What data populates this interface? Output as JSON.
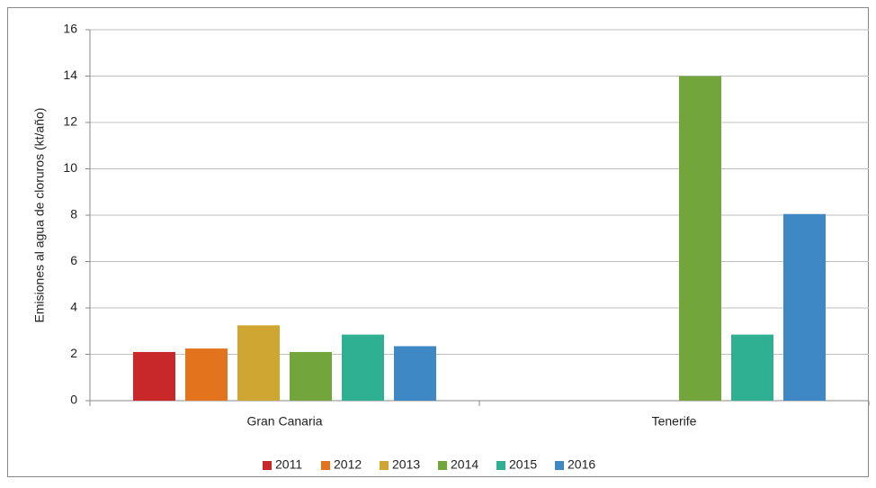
{
  "chart_data": {
    "type": "bar",
    "y_label": "Emisiones al agua de cloruros (kt/año)",
    "categories": [
      "Gran Canaria",
      "Tenerife"
    ],
    "series": [
      {
        "name": "2011",
        "color": "#c9282a",
        "values": [
          2.1,
          null
        ]
      },
      {
        "name": "2012",
        "color": "#e3731c",
        "values": [
          2.25,
          null
        ]
      },
      {
        "name": "2013",
        "color": "#cfa632",
        "values": [
          3.25,
          null
        ]
      },
      {
        "name": "2014",
        "color": "#72a53c",
        "values": [
          2.1,
          14
        ]
      },
      {
        "name": "2015",
        "color": "#2fb092",
        "values": [
          2.85,
          2.85
        ]
      },
      {
        "name": "2016",
        "color": "#3f88c6",
        "values": [
          2.35,
          8.05
        ]
      }
    ],
    "ylim": [
      0,
      16
    ],
    "yticks": [
      0,
      2,
      4,
      6,
      8,
      10,
      12,
      14,
      16
    ],
    "grid": true,
    "legend": "bottom"
  }
}
